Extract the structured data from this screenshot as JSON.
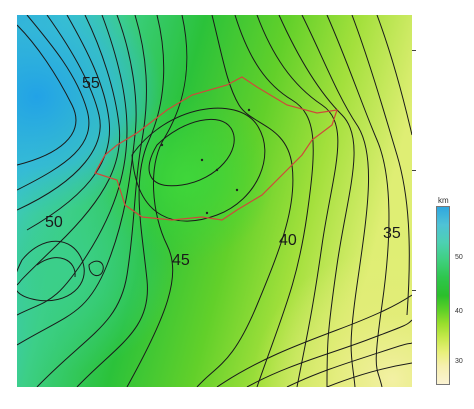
{
  "map": {
    "contour_labels": [
      "55",
      "50",
      "45",
      "40",
      "35"
    ]
  },
  "colorbar": {
    "unit": "km",
    "ticks": [
      "50",
      "40",
      "30"
    ]
  },
  "colors": {
    "boundary": "#d0483a",
    "contour": "#1a1a1a",
    "deep_blue": "#2fa7e0",
    "green": "#2bbf2b",
    "yellow": "#e9f07a"
  }
}
